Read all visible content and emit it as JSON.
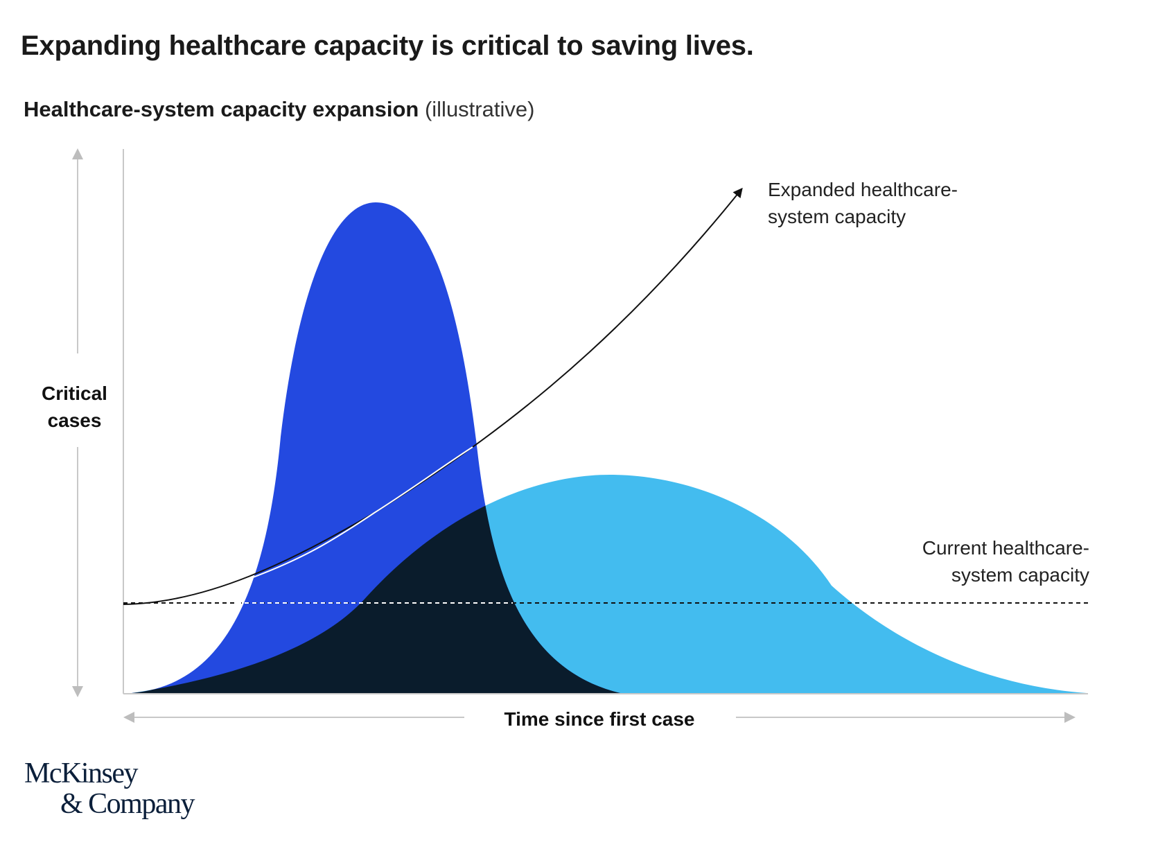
{
  "title": "Expanding healthcare capacity is critical to saving lives.",
  "subtitle": {
    "bold": "Healthcare-system capacity expansion",
    "light": "(illustrative)"
  },
  "chart_data": {
    "type": "area",
    "illustrative": true,
    "x_axis_label": "Time since first case",
    "y_axis_label": "Critical cases",
    "grid": false,
    "curves": [
      {
        "id": "unmitigated-peak",
        "shape": "tall narrow bell curve",
        "peak_position": "early",
        "color": "#2349e0"
      },
      {
        "id": "flattened-curve",
        "shape": "low wide bell curve",
        "peak_position": "middle",
        "color": "#43bcef"
      },
      {
        "id": "overlap",
        "description": "region where the two curves overlap",
        "color": "#0a1c2c"
      }
    ],
    "lines": [
      {
        "id": "current-capacity",
        "style": "dashed",
        "trend": "flat",
        "label": "Current healthcare-system capacity",
        "color": "#111111"
      },
      {
        "id": "expanded-capacity",
        "style": "solid with arrowhead",
        "trend": "rising",
        "label": "Expanded healthcare-system capacity",
        "color": "#111111"
      }
    ]
  },
  "labels": {
    "y_axis": "Critical\ncases",
    "x_axis": "Time since first case",
    "expanded": "Expanded healthcare-\nsystem capacity",
    "current": "Current healthcare-\nsystem capacity"
  },
  "logo": {
    "line1": "McKinsey",
    "line2": "& Company"
  }
}
